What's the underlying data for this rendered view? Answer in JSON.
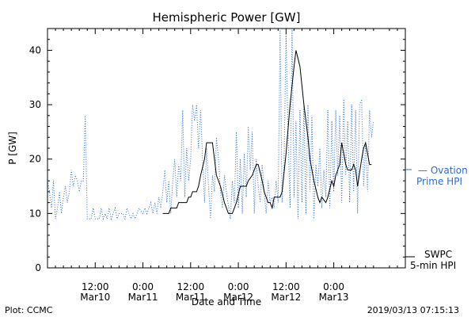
{
  "chart_data": {
    "type": "line",
    "title": "Hemispheric Power [GW]",
    "ylabel": "P [GW]",
    "xlabel": "Date and Time",
    "ylim": [
      0,
      44
    ],
    "xlim": [
      0,
      90
    ],
    "x_unit": "hours since 2019-03-10 00:00",
    "y_ticks": [
      0,
      10,
      20,
      30,
      40
    ],
    "x_ticks": [
      {
        "x": 12,
        "time": "12:00",
        "date": "Mar10"
      },
      {
        "x": 24,
        "time": "0:00",
        "date": "Mar11"
      },
      {
        "x": 36,
        "time": "12:00",
        "date": "Mar11"
      },
      {
        "x": 48,
        "time": "0:00",
        "date": "Mar12"
      },
      {
        "x": 60,
        "time": "12:00",
        "date": "Mar12"
      },
      {
        "x": 72,
        "time": "0:00",
        "date": "Mar13"
      }
    ],
    "series": [
      {
        "name": "SWPC 5-min HPI",
        "label_lines": [
          "SWPC",
          "5-min HPI"
        ],
        "color": "#000000",
        "style": "solid",
        "points": [
          [
            29,
            10
          ],
          [
            30.5,
            10
          ],
          [
            31,
            11
          ],
          [
            32.5,
            11
          ],
          [
            33,
            12
          ],
          [
            35,
            12
          ],
          [
            35.5,
            13
          ],
          [
            36,
            13
          ],
          [
            36.5,
            14
          ],
          [
            37.5,
            14
          ],
          [
            38,
            15
          ],
          [
            38.5,
            17
          ],
          [
            39.5,
            20
          ],
          [
            40,
            23
          ],
          [
            41.5,
            23
          ],
          [
            42,
            20
          ],
          [
            42.5,
            17
          ],
          [
            43.5,
            15
          ],
          [
            44.5,
            12
          ],
          [
            45.5,
            10
          ],
          [
            46.5,
            10
          ],
          [
            47.5,
            12
          ],
          [
            48.5,
            15
          ],
          [
            50,
            15
          ],
          [
            50.5,
            16
          ],
          [
            51.5,
            17
          ],
          [
            52.5,
            19
          ],
          [
            53,
            19
          ],
          [
            54,
            16
          ],
          [
            54.5,
            14
          ],
          [
            55.5,
            12
          ],
          [
            56,
            12
          ],
          [
            56.5,
            11
          ],
          [
            57,
            13
          ],
          [
            58.5,
            13
          ],
          [
            59,
            14
          ],
          [
            60,
            21
          ],
          [
            61,
            30
          ],
          [
            62,
            37
          ],
          [
            62.5,
            40
          ],
          [
            63.5,
            37
          ],
          [
            64.5,
            30
          ],
          [
            65.5,
            24
          ],
          [
            66,
            20
          ],
          [
            67,
            16
          ],
          [
            68,
            13
          ],
          [
            68.5,
            12
          ],
          [
            69,
            13
          ],
          [
            70,
            12
          ],
          [
            70.5,
            13
          ],
          [
            71.5,
            16
          ],
          [
            72,
            15
          ],
          [
            72.5,
            17
          ],
          [
            73,
            18
          ],
          [
            73.5,
            19
          ],
          [
            74,
            23
          ],
          [
            74.5,
            21
          ],
          [
            75,
            19
          ],
          [
            75.5,
            18
          ],
          [
            76.5,
            18
          ],
          [
            77,
            19
          ],
          [
            77.5,
            18
          ],
          [
            78,
            15
          ],
          [
            79,
            20
          ],
          [
            79.5,
            22
          ],
          [
            80,
            23
          ],
          [
            80.5,
            21
          ],
          [
            81,
            19
          ],
          [
            81.5,
            19
          ]
        ]
      },
      {
        "name": "Ovation Prime HPI",
        "label_lines": [
          "— Ovation",
          "Prime HPI"
        ],
        "color": "#2b6cd6",
        "style": "dotted",
        "points": [
          [
            0,
            16
          ],
          [
            0.5,
            14
          ],
          [
            1,
            11
          ],
          [
            1.5,
            16
          ],
          [
            2,
            9
          ],
          [
            2.5,
            11
          ],
          [
            3,
            14
          ],
          [
            3.5,
            10
          ],
          [
            4,
            13
          ],
          [
            4.5,
            15
          ],
          [
            5,
            12
          ],
          [
            5.5,
            14
          ],
          [
            6,
            18
          ],
          [
            6.5,
            15
          ],
          [
            7,
            17
          ],
          [
            7.5,
            16
          ],
          [
            8,
            14
          ],
          [
            8.5,
            16
          ],
          [
            9,
            16
          ],
          [
            9.5,
            28
          ],
          [
            10,
            9
          ],
          [
            11,
            9
          ],
          [
            11.5,
            11
          ],
          [
            12,
            9
          ],
          [
            13,
            9
          ],
          [
            13.5,
            11
          ],
          [
            14,
            9
          ],
          [
            14.5,
            10
          ],
          [
            15,
            9
          ],
          [
            15.5,
            11
          ],
          [
            16,
            9
          ],
          [
            17,
            11
          ],
          [
            17.5,
            9
          ],
          [
            18,
            10
          ],
          [
            19,
            10
          ],
          [
            19.5,
            9
          ],
          [
            20,
            11
          ],
          [
            21,
            9
          ],
          [
            21.5,
            10
          ],
          [
            22,
            9
          ],
          [
            22.5,
            10
          ],
          [
            23,
            11
          ],
          [
            24,
            10
          ],
          [
            24.5,
            11
          ],
          [
            25,
            10
          ],
          [
            26,
            12
          ],
          [
            26.5,
            10
          ],
          [
            27,
            12
          ],
          [
            27.5,
            10
          ],
          [
            28,
            13
          ],
          [
            28.5,
            11
          ],
          [
            29,
            14
          ],
          [
            29.5,
            18
          ],
          [
            30,
            12
          ],
          [
            30.5,
            16
          ],
          [
            31,
            10
          ],
          [
            31.5,
            16
          ],
          [
            32,
            20
          ],
          [
            32.5,
            13
          ],
          [
            33,
            19
          ],
          [
            33.5,
            16
          ],
          [
            34,
            29
          ],
          [
            34.5,
            13
          ],
          [
            35,
            22
          ],
          [
            35.5,
            16
          ],
          [
            36,
            20
          ],
          [
            36.5,
            30
          ],
          [
            37,
            27
          ],
          [
            37.5,
            30
          ],
          [
            38,
            22
          ],
          [
            38.5,
            29
          ],
          [
            39,
            20
          ],
          [
            39.5,
            12
          ],
          [
            40,
            22
          ],
          [
            40.5,
            15
          ],
          [
            41,
            9
          ],
          [
            41.5,
            17
          ],
          [
            42,
            14
          ],
          [
            42.5,
            24
          ],
          [
            43,
            20
          ],
          [
            43.5,
            14
          ],
          [
            44,
            11
          ],
          [
            44.5,
            17
          ],
          [
            45,
            14
          ],
          [
            46,
            9
          ],
          [
            46.5,
            16
          ],
          [
            47,
            12
          ],
          [
            47.5,
            25
          ],
          [
            48,
            11
          ],
          [
            48.5,
            20
          ],
          [
            49,
            10
          ],
          [
            49.5,
            21
          ],
          [
            50,
            13
          ],
          [
            50.5,
            26
          ],
          [
            51,
            18
          ],
          [
            51.5,
            25
          ],
          [
            52,
            10
          ],
          [
            52.5,
            20
          ],
          [
            53,
            15
          ],
          [
            53.5,
            12
          ],
          [
            54,
            19
          ],
          [
            54.5,
            14
          ],
          [
            55,
            10
          ],
          [
            55.5,
            16
          ],
          [
            56,
            12
          ],
          [
            56.5,
            13
          ],
          [
            57,
            11
          ],
          [
            57.5,
            16
          ],
          [
            58,
            12
          ],
          [
            58.5,
            44
          ],
          [
            59,
            12
          ],
          [
            59.5,
            19
          ],
          [
            60,
            43
          ],
          [
            60.5,
            25
          ],
          [
            61,
            11
          ],
          [
            61.5,
            44
          ],
          [
            62,
            13
          ],
          [
            62.5,
            27
          ],
          [
            63,
            9
          ],
          [
            63.5,
            29
          ],
          [
            64,
            12
          ],
          [
            64.5,
            30
          ],
          [
            65,
            10
          ],
          [
            65.5,
            30
          ],
          [
            66,
            14
          ],
          [
            66.5,
            28
          ],
          [
            67,
            9
          ],
          [
            67.5,
            19
          ],
          [
            68,
            15
          ],
          [
            68.5,
            22
          ],
          [
            69,
            11
          ],
          [
            69.5,
            18
          ],
          [
            70,
            13
          ],
          [
            70.5,
            29
          ],
          [
            71,
            11
          ],
          [
            71.5,
            27
          ],
          [
            72,
            14
          ],
          [
            72.5,
            29
          ],
          [
            73,
            17
          ],
          [
            73.5,
            28
          ],
          [
            74,
            12
          ],
          [
            74.5,
            31
          ],
          [
            75,
            17
          ],
          [
            75.5,
            27
          ],
          [
            76,
            12
          ],
          [
            76.5,
            30
          ],
          [
            77,
            14
          ],
          [
            77.5,
            29
          ],
          [
            78,
            10
          ],
          [
            78.5,
            30
          ],
          [
            79,
            31
          ],
          [
            79.5,
            15
          ],
          [
            80,
            23
          ],
          [
            80.5,
            14
          ],
          [
            81,
            29
          ],
          [
            81.5,
            24
          ],
          [
            82,
            27
          ]
        ]
      }
    ]
  },
  "footer": {
    "left": "Plot: CCMC",
    "right": "2019/03/13 07:15:13"
  }
}
